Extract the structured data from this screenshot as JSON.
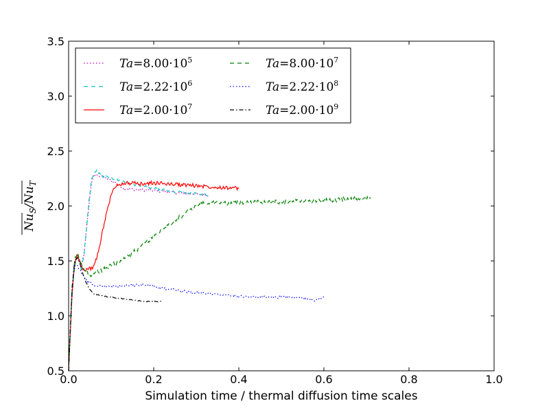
{
  "chart_data": {
    "type": "line",
    "title": "",
    "xlabel": "Simulation time / thermal diffusion time scales",
    "ylabel": "Nu_S / Nu_T (time-averaged)",
    "ylabel_parts": {
      "num": "Nu",
      "num_sub": "S",
      "slash": "/",
      "den": "Nu",
      "den_sub": "T"
    },
    "xlim": [
      0.0,
      1.0
    ],
    "ylim": [
      0.5,
      3.5
    ],
    "xticks": [
      "0.0",
      "0.2",
      "0.4",
      "0.6",
      "0.8",
      "1.0"
    ],
    "yticks": [
      "0.5",
      "1.0",
      "1.5",
      "2.0",
      "2.5",
      "3.0",
      "3.5"
    ],
    "grid": false,
    "legend_position": "top-left",
    "series": [
      {
        "name": "Ta=8.00·10^5",
        "label_base": "Ta",
        "label_eq": "=",
        "label_mant": "8.00·10",
        "label_exp": "5",
        "color": "#bf00bf",
        "style": "dotted",
        "noise": 0.012,
        "x": [
          0.0,
          0.006,
          0.012,
          0.018,
          0.024,
          0.03,
          0.036,
          0.042,
          0.048,
          0.054,
          0.06,
          0.066,
          0.075,
          0.09,
          0.11,
          0.13,
          0.16,
          0.2,
          0.25,
          0.3,
          0.33
        ],
        "y": [
          0.5,
          1.05,
          1.38,
          1.52,
          1.52,
          1.47,
          1.56,
          1.78,
          2.02,
          2.22,
          2.28,
          2.28,
          2.27,
          2.25,
          2.21,
          2.16,
          2.15,
          2.14,
          2.12,
          2.11,
          2.1
        ]
      },
      {
        "name": "Ta=2.22·10^6",
        "label_base": "Ta",
        "label_eq": "=",
        "label_mant": "2.22·10",
        "label_exp": "6",
        "color": "#00bfbf",
        "style": "dashed",
        "noise": 0.012,
        "x": [
          0.0,
          0.006,
          0.012,
          0.018,
          0.024,
          0.03,
          0.036,
          0.042,
          0.048,
          0.054,
          0.06,
          0.066,
          0.075,
          0.09,
          0.11,
          0.13,
          0.16,
          0.2,
          0.25,
          0.3,
          0.33
        ],
        "y": [
          0.5,
          1.05,
          1.38,
          1.52,
          1.52,
          1.42,
          1.55,
          1.8,
          2.05,
          2.24,
          2.3,
          2.32,
          2.28,
          2.26,
          2.24,
          2.22,
          2.19,
          2.16,
          2.13,
          2.11,
          2.1
        ]
      },
      {
        "name": "Ta=2.00·10^7",
        "label_base": "Ta",
        "label_eq": "=",
        "label_mant": "2.00·10",
        "label_exp": "7",
        "color": "#ff0000",
        "style": "solid",
        "noise": 0.018,
        "x": [
          0.0,
          0.008,
          0.014,
          0.02,
          0.026,
          0.032,
          0.04,
          0.05,
          0.06,
          0.07,
          0.08,
          0.09,
          0.1,
          0.11,
          0.12,
          0.14,
          0.17,
          0.2,
          0.24,
          0.28,
          0.32,
          0.36,
          0.4
        ],
        "y": [
          0.5,
          1.2,
          1.48,
          1.55,
          1.5,
          1.44,
          1.42,
          1.43,
          1.45,
          1.58,
          1.78,
          1.95,
          2.1,
          2.18,
          2.2,
          2.21,
          2.2,
          2.21,
          2.2,
          2.19,
          2.18,
          2.17,
          2.16
        ]
      },
      {
        "name": "Ta=8.00·10^7",
        "label_base": "Ta",
        "label_eq": "=",
        "label_mant": "8.00·10",
        "label_exp": "7",
        "color": "#008000",
        "style": "dashed",
        "noise": 0.02,
        "x": [
          0.0,
          0.008,
          0.015,
          0.022,
          0.03,
          0.04,
          0.05,
          0.06,
          0.08,
          0.1,
          0.13,
          0.16,
          0.2,
          0.24,
          0.28,
          0.31,
          0.34,
          0.38,
          0.42,
          0.46,
          0.5,
          0.55,
          0.6,
          0.65,
          0.7,
          0.71
        ],
        "y": [
          0.5,
          1.25,
          1.52,
          1.56,
          1.46,
          1.4,
          1.37,
          1.38,
          1.42,
          1.46,
          1.52,
          1.6,
          1.72,
          1.84,
          1.95,
          2.02,
          2.03,
          2.02,
          2.04,
          2.03,
          2.04,
          2.05,
          2.05,
          2.06,
          2.07,
          2.07
        ]
      },
      {
        "name": "Ta=2.22·10^8",
        "label_base": "Ta",
        "label_eq": "=",
        "label_mant": "2.22·10",
        "label_exp": "8",
        "color": "#0000ff",
        "style": "dotted",
        "noise": 0.01,
        "x": [
          0.0,
          0.008,
          0.014,
          0.02,
          0.026,
          0.032,
          0.04,
          0.05,
          0.06,
          0.07,
          0.09,
          0.12,
          0.15,
          0.18,
          0.2,
          0.22,
          0.26,
          0.3,
          0.35,
          0.4,
          0.45,
          0.5,
          0.55,
          0.58,
          0.6
        ],
        "y": [
          0.5,
          1.25,
          1.45,
          1.46,
          1.42,
          1.38,
          1.33,
          1.3,
          1.28,
          1.27,
          1.27,
          1.27,
          1.28,
          1.28,
          1.27,
          1.25,
          1.23,
          1.21,
          1.2,
          1.18,
          1.17,
          1.17,
          1.16,
          1.14,
          1.18
        ]
      },
      {
        "name": "Ta=2.00·10^9",
        "label_base": "Ta",
        "label_eq": "=",
        "label_mant": "2.00·10",
        "label_exp": "9",
        "color": "#000000",
        "style": "dashdot",
        "noise": 0.004,
        "x": [
          0.0,
          0.008,
          0.014,
          0.02,
          0.026,
          0.032,
          0.04,
          0.05,
          0.06,
          0.08,
          0.1,
          0.12,
          0.14,
          0.16,
          0.18,
          0.2,
          0.22
        ],
        "y": [
          0.5,
          1.25,
          1.5,
          1.53,
          1.48,
          1.4,
          1.31,
          1.24,
          1.2,
          1.18,
          1.17,
          1.16,
          1.15,
          1.14,
          1.13,
          1.13,
          1.13
        ]
      }
    ]
  }
}
